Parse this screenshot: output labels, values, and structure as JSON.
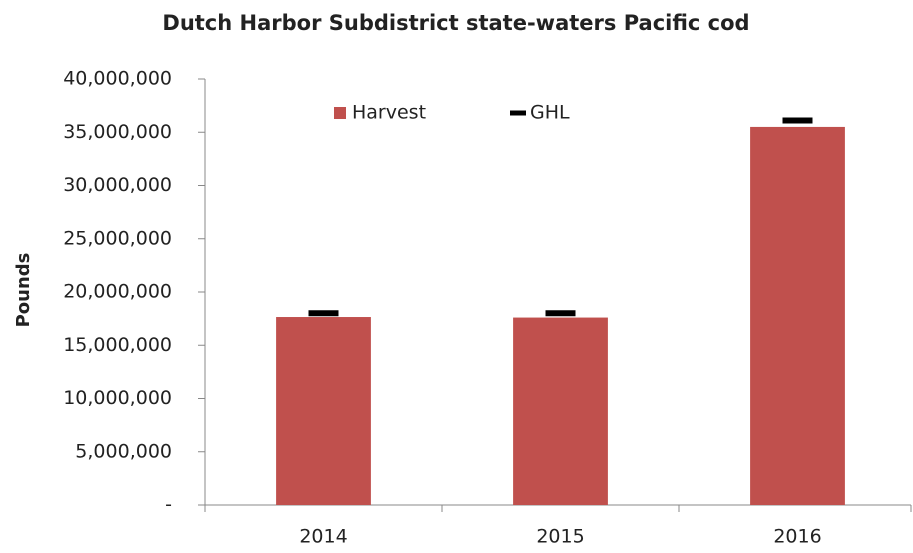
{
  "chart_data": {
    "type": "bar",
    "title": "Dutch Harbor Subdistrict state-waters Pacific cod",
    "y_label": "Pounds",
    "categories": [
      "2014",
      "2015",
      "2016"
    ],
    "series": [
      {
        "name": "Harvest",
        "type": "bar",
        "color": "#c0504d",
        "values": [
          17650000,
          17600000,
          35500000
        ]
      },
      {
        "name": "GHL",
        "type": "dash",
        "color": "#000000",
        "values": [
          18000000,
          18000000,
          36100000
        ]
      }
    ],
    "ylim": [
      0,
      40000000
    ],
    "yticks": [
      {
        "value": 0,
        "label": "-"
      },
      {
        "value": 5000000,
        "label": "5,000,000"
      },
      {
        "value": 10000000,
        "label": "10,000,000"
      },
      {
        "value": 15000000,
        "label": "15,000,000"
      },
      {
        "value": 20000000,
        "label": "20,000,000"
      },
      {
        "value": 25000000,
        "label": "25,000,000"
      },
      {
        "value": 30000000,
        "label": "30,000,000"
      },
      {
        "value": 35000000,
        "label": "35,000,000"
      },
      {
        "value": 40000000,
        "label": "40,000,000"
      }
    ],
    "grid": false,
    "legend": "top"
  }
}
